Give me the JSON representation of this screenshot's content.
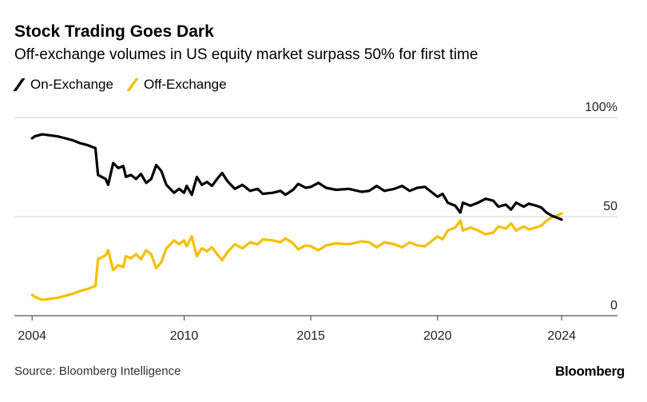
{
  "header": {
    "title": "Stock Trading Goes Dark",
    "subtitle": "Off-exchange volumes in US equity market surpass 50% for first time"
  },
  "footer": {
    "source": "Source: Bloomberg Intelligence",
    "logo": "Bloomberg"
  },
  "chart_data": {
    "type": "line",
    "title": "Stock Trading Goes Dark",
    "subtitle": "Off-exchange volumes in US equity market surpass 50% for first time",
    "legend_position": "top-left",
    "xlim": [
      2003.3,
      2027.1
    ],
    "ylim": [
      0,
      100
    ],
    "grid": "horizontal",
    "y_ticks": [
      {
        "value": 0,
        "label": "0"
      },
      {
        "value": 50,
        "label": "50"
      },
      {
        "value": 100,
        "label": "100%"
      }
    ],
    "x_ticks": [
      {
        "value": 2004,
        "label": "2004"
      },
      {
        "value": 2010,
        "label": "2010"
      },
      {
        "value": 2015,
        "label": "2015"
      },
      {
        "value": 2020,
        "label": "2020"
      },
      {
        "value": 2024.9,
        "label": "2024"
      }
    ],
    "x": [
      2004.0,
      2004.1,
      2004.4,
      2004.7,
      2005.0,
      2005.3,
      2005.6,
      2005.9,
      2006.2,
      2006.5,
      2006.6,
      2006.9,
      2007.0,
      2007.2,
      2007.4,
      2007.6,
      2007.7,
      2007.9,
      2008.1,
      2008.3,
      2008.5,
      2008.7,
      2008.9,
      2009.1,
      2009.3,
      2009.6,
      2009.8,
      2010.0,
      2010.1,
      2010.3,
      2010.5,
      2010.7,
      2010.9,
      2011.1,
      2011.3,
      2011.5,
      2011.7,
      2012.0,
      2012.3,
      2012.6,
      2012.9,
      2013.1,
      2013.5,
      2013.8,
      2014.0,
      2014.3,
      2014.5,
      2014.8,
      2015.0,
      2015.3,
      2015.6,
      2016.0,
      2016.5,
      2017.0,
      2017.3,
      2017.6,
      2017.9,
      2018.3,
      2018.6,
      2018.9,
      2019.2,
      2019.5,
      2019.8,
      2020.0,
      2020.2,
      2020.4,
      2020.7,
      2020.9,
      2021.0,
      2021.3,
      2021.6,
      2021.9,
      2022.2,
      2022.4,
      2022.7,
      2022.9,
      2023.1,
      2023.4,
      2023.6,
      2023.9,
      2024.1,
      2024.3,
      2024.5,
      2024.9
    ],
    "series": [
      {
        "name": "On-Exchange",
        "color": "#000000",
        "values": [
          89.5,
          90.5,
          91.5,
          91,
          90.5,
          89.5,
          88.5,
          87,
          86,
          84.5,
          71,
          69,
          66,
          77,
          74.5,
          75.5,
          70,
          71,
          69,
          71.5,
          67,
          69,
          76,
          73,
          66,
          62,
          64,
          62,
          65.5,
          61,
          70,
          66,
          67.5,
          65.5,
          69,
          72,
          68,
          64,
          66,
          63,
          64,
          61.5,
          62,
          63,
          61,
          63.5,
          66.5,
          64.5,
          65,
          67,
          64.5,
          63.5,
          64,
          62.5,
          63,
          65.5,
          63,
          64,
          65.5,
          63,
          64.5,
          65,
          62,
          60,
          61.5,
          57,
          55.5,
          52,
          57,
          55.5,
          57,
          59,
          58,
          55,
          56,
          53.5,
          57,
          55,
          56.5,
          55.5,
          54.5,
          52,
          50.5,
          48.5
        ]
      },
      {
        "name": "Off-Exchange",
        "color": "#F5BE00",
        "values": [
          10.5,
          9.5,
          8,
          8.5,
          9,
          10,
          11,
          12.5,
          13.5,
          15,
          28.5,
          30.5,
          33,
          23,
          25.5,
          24.5,
          30,
          29,
          31,
          28.5,
          33,
          31,
          24,
          27,
          34,
          38,
          36,
          38,
          35,
          40,
          30,
          34,
          32.5,
          34.5,
          31,
          28,
          32,
          36,
          34,
          37,
          36,
          38.5,
          38,
          37,
          39,
          36.5,
          33.5,
          35.5,
          35,
          33,
          35.5,
          36.5,
          36,
          37.5,
          37,
          34.5,
          37,
          36,
          34.5,
          37,
          35.5,
          35,
          38,
          40,
          38.5,
          43,
          44.5,
          48,
          43,
          44.5,
          43,
          41,
          42,
          45,
          44,
          46.5,
          43,
          45,
          43.5,
          44.5,
          45.5,
          48,
          49.5,
          51.5
        ]
      }
    ]
  }
}
